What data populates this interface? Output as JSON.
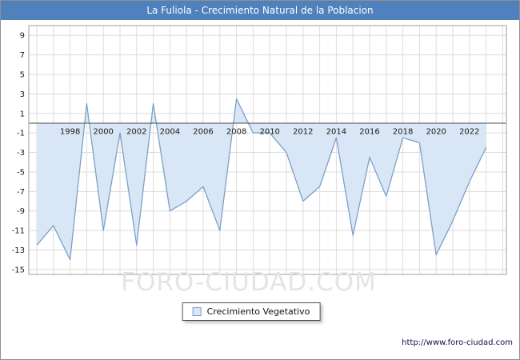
{
  "header": {
    "title": "La Fuliola - Crecimiento Natural de la Poblacion",
    "bg": "#4f81bd"
  },
  "chart_data": {
    "type": "area",
    "title": "La Fuliola - Crecimiento Natural de la Poblacion",
    "xlabel": "",
    "ylabel": "",
    "grid": true,
    "legend_position": "bottom",
    "x": [
      1996,
      1997,
      1998,
      1999,
      2000,
      2001,
      2002,
      2003,
      2004,
      2005,
      2006,
      2007,
      2008,
      2009,
      2010,
      2011,
      2012,
      2013,
      2014,
      2015,
      2016,
      2017,
      2018,
      2019,
      2020,
      2021,
      2022,
      2023
    ],
    "series": [
      {
        "name": "Crecimiento Vegetativo",
        "values": [
          -12.5,
          -10.5,
          -14,
          2,
          -11,
          -1,
          -12.5,
          2,
          -9,
          -8,
          -6.5,
          -11,
          2.5,
          -1,
          -1,
          -3,
          -8,
          -6.5,
          -1.5,
          -11.5,
          -3.5,
          -7.5,
          -1.5,
          -2,
          -13.5,
          -10,
          -6,
          -2.5
        ]
      }
    ],
    "ylim": [
      -15.5,
      10
    ],
    "yticks": [
      9,
      7,
      5,
      3,
      1,
      -1,
      -3,
      -5,
      -7,
      -9,
      -11,
      -13,
      -15
    ],
    "xticks": [
      1998,
      2000,
      2002,
      2004,
      2006,
      2008,
      2010,
      2012,
      2014,
      2016,
      2018,
      2020,
      2022
    ],
    "line_color": "#7da0c8",
    "fill_color": "#d9e6f5",
    "zero_line_color": "#4a4a4a",
    "grid_color": "#dcdcdc"
  },
  "legend": {
    "label": "Crecimiento Vegetativo"
  },
  "watermark": "FORO-CIUDAD.COM",
  "footer": {
    "url": "http://www.foro-ciudad.com"
  }
}
